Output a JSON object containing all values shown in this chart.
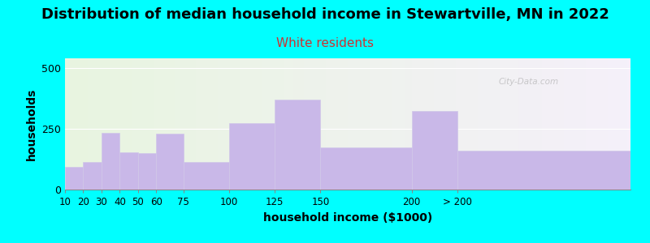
{
  "title": "Distribution of median household income in Stewartville, MN in 2022",
  "subtitle": "White residents",
  "xlabel": "household income ($1000)",
  "ylabel": "households",
  "background_color": "#00FFFF",
  "bar_color": "#c9b8e8",
  "bar_edge_color": "#d0c8e8",
  "watermark": "City-Data.com",
  "title_fontsize": 13,
  "subtitle_fontsize": 11,
  "axis_label_fontsize": 10,
  "bin_edges": [
    10,
    20,
    30,
    40,
    50,
    60,
    75,
    100,
    125,
    150,
    200,
    225,
    320
  ],
  "bin_labels": [
    "10",
    "20",
    "30",
    "40",
    "50",
    "60",
    "75",
    "100",
    "125",
    "150",
    "200",
    "> 200"
  ],
  "values": [
    95,
    115,
    235,
    155,
    150,
    230,
    115,
    275,
    370,
    175,
    325,
    160
  ],
  "ylim": [
    0,
    540
  ],
  "yticks": [
    0,
    250,
    500
  ]
}
